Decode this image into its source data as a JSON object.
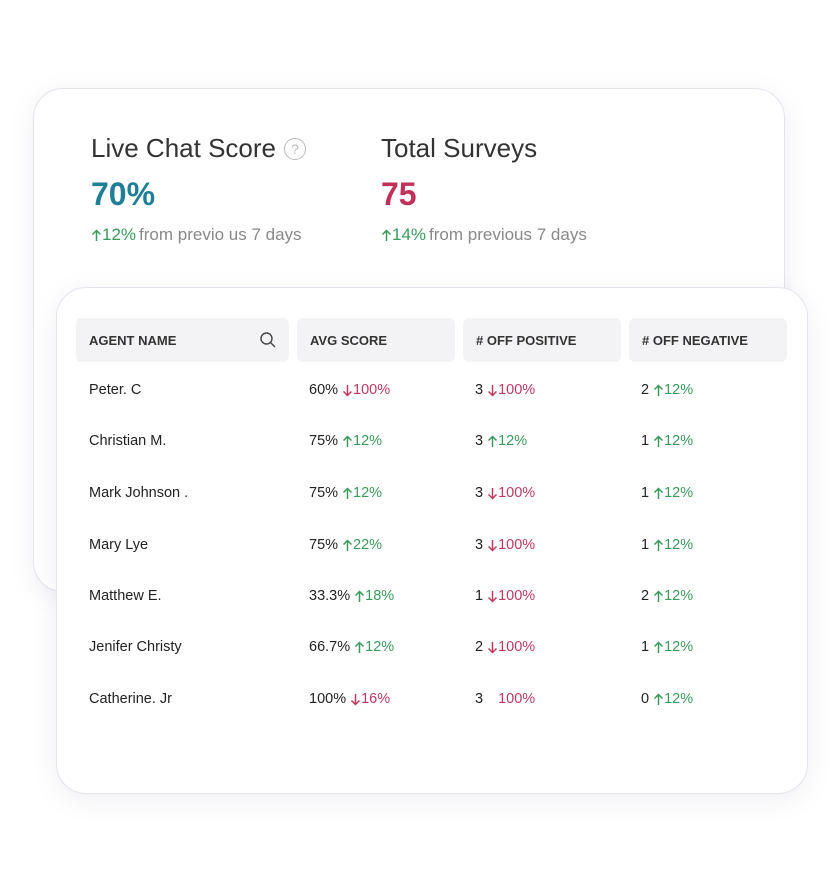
{
  "stats": [
    {
      "title": "Live Chat Score",
      "value": "70%",
      "change": "12%",
      "dir": "up",
      "note": "from previo us 7 days",
      "help": "?"
    },
    {
      "title": "Total Surveys",
      "value": "75",
      "change": "14%",
      "dir": "up",
      "note": "from previous 7 days"
    }
  ],
  "table": {
    "headers": [
      "AGENT NAME",
      "AVG SCORE",
      "# OFF POSITIVE",
      "# OFF NEGATIVE"
    ],
    "rows": [
      {
        "name": "Peter. C",
        "cells": [
          {
            "value": "60%",
            "change": "100%",
            "dir": "down"
          },
          {
            "value": "3",
            "change": "100%",
            "dir": "down"
          },
          {
            "value": "2",
            "change": "12%",
            "dir": "up"
          }
        ]
      },
      {
        "name": "Christian M.",
        "cells": [
          {
            "value": "75%",
            "change": "12%",
            "dir": "up"
          },
          {
            "value": "3",
            "change": "12%",
            "dir": "up"
          },
          {
            "value": "1",
            "change": "12%",
            "dir": "up"
          }
        ]
      },
      {
        "name": "Mark Johnson .",
        "cells": [
          {
            "value": "75%",
            "change": "12%",
            "dir": "up"
          },
          {
            "value": "3",
            "change": "100%",
            "dir": "down"
          },
          {
            "value": "1",
            "change": "12%",
            "dir": "up"
          }
        ]
      },
      {
        "name": "Mary Lye",
        "cells": [
          {
            "value": "75%",
            "change": "22%",
            "dir": "up"
          },
          {
            "value": "3",
            "change": "100%",
            "dir": "down"
          },
          {
            "value": "1",
            "change": "12%",
            "dir": "up"
          }
        ]
      },
      {
        "name": "Matthew E.",
        "cells": [
          {
            "value": "33.3%",
            "change": "18%",
            "dir": "up"
          },
          {
            "value": "1",
            "change": "100%",
            "dir": "down"
          },
          {
            "value": "2",
            "change": "12%",
            "dir": "up"
          }
        ]
      },
      {
        "name": "Jenifer Christy",
        "cells": [
          {
            "value": "66.7%",
            "change": "12%",
            "dir": "up"
          },
          {
            "value": "2",
            "change": "100%",
            "dir": "down"
          },
          {
            "value": "1",
            "change": "12%",
            "dir": "up"
          }
        ]
      },
      {
        "name": "Catherine. Jr",
        "cells": [
          {
            "value": "100%",
            "change": "16%",
            "dir": "down"
          },
          {
            "value": "3",
            "change": "100%",
            "dir": null
          },
          {
            "value": "0",
            "change": "12%",
            "dir": "up"
          }
        ]
      }
    ]
  }
}
